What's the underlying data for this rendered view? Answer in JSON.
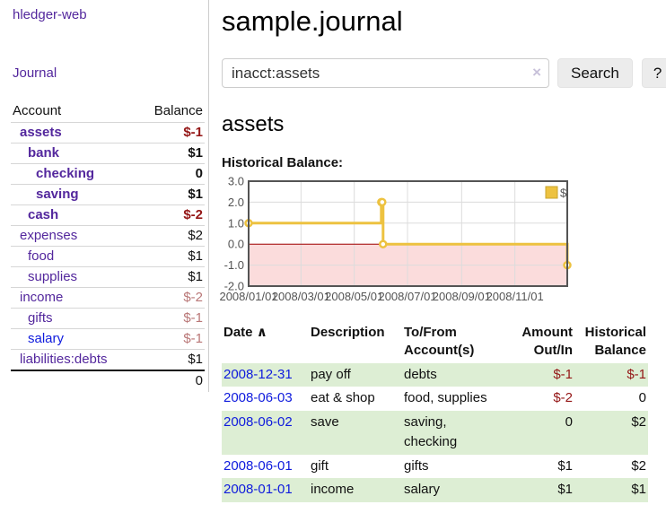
{
  "colors": {
    "accent_purple": "#53279d",
    "link_blue": "#0f1bdd",
    "negative_strong": "#941616",
    "negative_soft": "#b97777",
    "row_green": "#ddeed4",
    "series_yellow": "#edc240"
  },
  "sidebar": {
    "app_title": "hledger-web",
    "journal_label": "Journal",
    "headers": {
      "account": "Account",
      "balance": "Balance"
    },
    "accounts": [
      {
        "name": "assets",
        "balance": "$-1",
        "level": 1,
        "bold": true,
        "neg": "strong"
      },
      {
        "name": "bank",
        "balance": "$1",
        "level": 2,
        "bold": true,
        "neg": null
      },
      {
        "name": "checking",
        "balance": "0",
        "level": 3,
        "bold": true,
        "neg": null
      },
      {
        "name": "saving",
        "balance": "$1",
        "level": 3,
        "bold": true,
        "neg": null
      },
      {
        "name": "cash",
        "balance": "$-2",
        "level": 2,
        "bold": true,
        "neg": "strong"
      },
      {
        "name": "expenses",
        "balance": "$2",
        "level": 1,
        "bold": false,
        "neg": null
      },
      {
        "name": "food",
        "balance": "$1",
        "level": 2,
        "bold": false,
        "neg": null
      },
      {
        "name": "supplies",
        "balance": "$1",
        "level": 2,
        "bold": false,
        "neg": null
      },
      {
        "name": "income",
        "balance": "$-2",
        "level": 1,
        "bold": false,
        "neg": "soft"
      },
      {
        "name": "gifts",
        "balance": "$-1",
        "level": 2,
        "bold": false,
        "neg": "soft"
      },
      {
        "name": "salary",
        "balance": "$-1",
        "level": 2,
        "bold": false,
        "neg": "soft",
        "link": "blue"
      },
      {
        "name": "liabilities:debts",
        "balance": "$1",
        "level": 1,
        "bold": false,
        "neg": null
      }
    ],
    "total": "0"
  },
  "header": {
    "title": "sample.journal"
  },
  "search": {
    "value": "inacct:assets",
    "clear_icon": "×",
    "button_label": "Search",
    "help_label": "?"
  },
  "account_page": {
    "heading": "assets"
  },
  "chart_data": {
    "type": "line",
    "step": true,
    "title": "Historical Balance:",
    "xlabel": "",
    "ylabel": "",
    "xlim": [
      "2008-01-01",
      "2008-12-31"
    ],
    "ylim": [
      -2,
      3
    ],
    "grid": true,
    "legend_position": "top-right",
    "series": [
      {
        "name": "$",
        "points": [
          {
            "date": "2008-01-01",
            "value": 1
          },
          {
            "date": "2008-06-01",
            "value": 2
          },
          {
            "date": "2008-06-02",
            "value": 2
          },
          {
            "date": "2008-06-03",
            "value": 0
          },
          {
            "date": "2008-12-31",
            "value": -1
          }
        ]
      }
    ],
    "y_ticks": [
      {
        "value": 3,
        "label": "3.0"
      },
      {
        "value": 2,
        "label": "2.0"
      },
      {
        "value": 1,
        "label": "1.0"
      },
      {
        "value": 0,
        "label": "0.0"
      },
      {
        "value": -1,
        "label": "-1.0"
      },
      {
        "value": -2,
        "label": "-2.0"
      }
    ],
    "x_ticks": [
      {
        "date": "2008-01-01",
        "label": "2008/01/01"
      },
      {
        "date": "2008-03-01",
        "label": "2008/03/01"
      },
      {
        "date": "2008-05-01",
        "label": "2008/05/01"
      },
      {
        "date": "2008-07-01",
        "label": "2008/07/01"
      },
      {
        "date": "2008-09-01",
        "label": "2008/09/01"
      },
      {
        "date": "2008-11-01",
        "label": "2008/11/01"
      }
    ],
    "chart_colors": {
      "series": "#edc240",
      "series_edge": "#c9a42e",
      "negative_region": "#fbdcdc",
      "zero_line": "#a40000",
      "gridline": "#dcdcdc",
      "border": "#545454",
      "axis_text": "#545454"
    }
  },
  "register": {
    "headers": {
      "date": "Date",
      "sort_icon": "∧",
      "description": "Description",
      "accounts": "To/From Account(s)",
      "amount": "Amount Out/In",
      "balance": "Historical Balance"
    },
    "rows": [
      {
        "date": "2008-12-31",
        "description": "pay off",
        "accounts": "debts",
        "amount": "$-1",
        "balance": "$-1",
        "amount_neg": true,
        "balance_neg": true,
        "shaded": true
      },
      {
        "date": "2008-06-03",
        "description": "eat & shop",
        "accounts": "food, supplies",
        "amount": "$-2",
        "balance": "0",
        "amount_neg": true,
        "balance_neg": false,
        "shaded": false
      },
      {
        "date": "2008-06-02",
        "description": "save",
        "accounts": "saving, checking",
        "amount": "0",
        "balance": "$2",
        "amount_neg": false,
        "balance_neg": false,
        "shaded": true
      },
      {
        "date": "2008-06-01",
        "description": "gift",
        "accounts": "gifts",
        "amount": "$1",
        "balance": "$2",
        "amount_neg": false,
        "balance_neg": false,
        "shaded": false
      },
      {
        "date": "2008-01-01",
        "description": "income",
        "accounts": "salary",
        "amount": "$1",
        "balance": "$1",
        "amount_neg": false,
        "balance_neg": false,
        "shaded": true
      }
    ]
  }
}
